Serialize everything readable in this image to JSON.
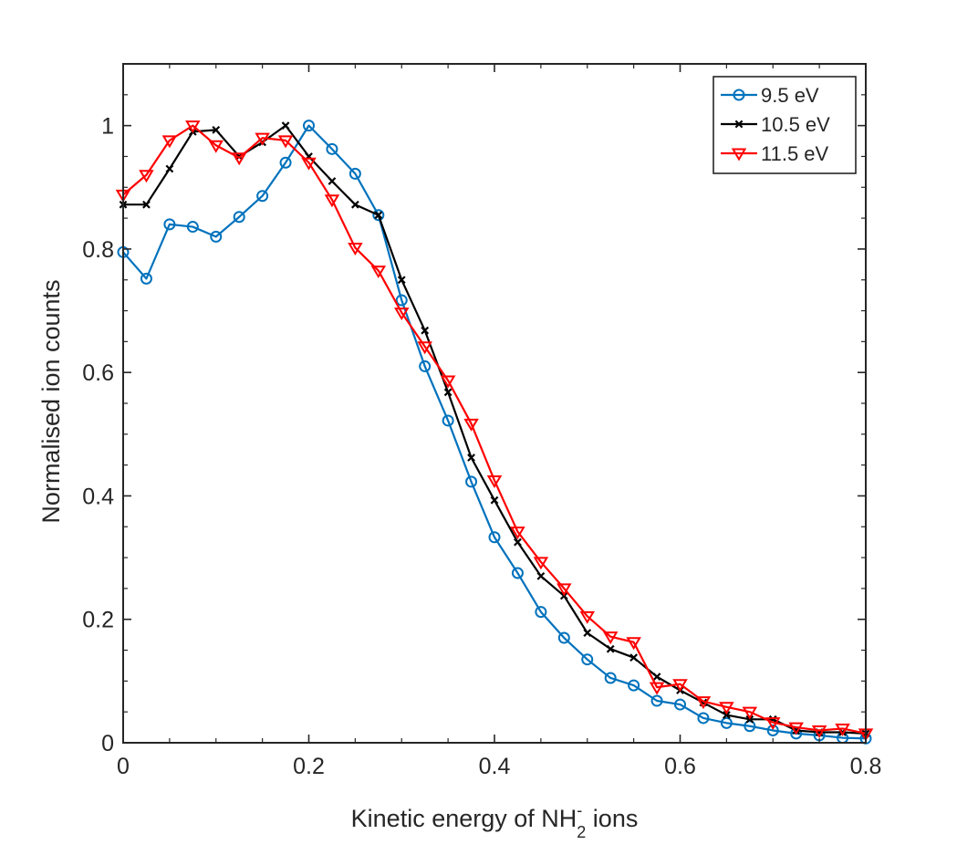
{
  "chart_data": {
    "type": "line",
    "title": "",
    "xlabel_prefix": "Kinetic energy of NH",
    "xlabel_sub": "2",
    "xlabel_sup": "-",
    "xlabel_suffix": " ions",
    "ylabel": "Normalised ion counts",
    "xlim": [
      0,
      0.8
    ],
    "ylim": [
      0,
      1.1
    ],
    "xticks": [
      0,
      0.2,
      0.4,
      0.6,
      0.8
    ],
    "xtick_labels": [
      "0",
      "0.2",
      "0.4",
      "0.6",
      "0.8"
    ],
    "yticks": [
      0,
      0.2,
      0.4,
      0.6,
      0.8,
      1
    ],
    "ytick_labels": [
      "0",
      "0.2",
      "0.4",
      "0.6",
      "0.8",
      "1"
    ],
    "grid": false,
    "legend_position": "top-right",
    "x": [
      0,
      0.025,
      0.05,
      0.075,
      0.1,
      0.125,
      0.15,
      0.175,
      0.2,
      0.225,
      0.25,
      0.275,
      0.3,
      0.325,
      0.35,
      0.375,
      0.4,
      0.425,
      0.45,
      0.475,
      0.5,
      0.525,
      0.55,
      0.575,
      0.6,
      0.625,
      0.65,
      0.675,
      0.7,
      0.725,
      0.75,
      0.775,
      0.8
    ],
    "series": [
      {
        "name": "9.5 eV",
        "color": "#0072BD",
        "marker": "circle",
        "values": [
          0.795,
          0.752,
          0.84,
          0.836,
          0.82,
          0.852,
          0.886,
          0.94,
          1.0,
          0.962,
          0.922,
          0.855,
          0.717,
          0.61,
          0.522,
          0.423,
          0.333,
          0.275,
          0.212,
          0.17,
          0.135,
          0.105,
          0.093,
          0.068,
          0.062,
          0.04,
          0.032,
          0.027,
          0.02,
          0.015,
          0.012,
          0.008,
          0.007
        ]
      },
      {
        "name": "10.5 eV",
        "color": "#000000",
        "marker": "x",
        "values": [
          0.872,
          0.872,
          0.93,
          0.99,
          0.993,
          0.95,
          0.973,
          1.0,
          0.95,
          0.91,
          0.872,
          0.855,
          0.75,
          0.668,
          0.568,
          0.462,
          0.393,
          0.325,
          0.27,
          0.238,
          0.178,
          0.152,
          0.138,
          0.107,
          0.085,
          0.065,
          0.045,
          0.038,
          0.038,
          0.02,
          0.017,
          0.017,
          0.015
        ]
      },
      {
        "name": "11.5 eV",
        "color": "#FF0000",
        "marker": "triangle-down",
        "values": [
          0.888,
          0.92,
          0.976,
          1.0,
          0.968,
          0.948,
          0.98,
          0.976,
          0.94,
          0.88,
          0.802,
          0.765,
          0.697,
          0.642,
          0.587,
          0.517,
          0.425,
          0.342,
          0.293,
          0.25,
          0.205,
          0.172,
          0.163,
          0.09,
          0.095,
          0.067,
          0.058,
          0.05,
          0.033,
          0.025,
          0.02,
          0.023,
          0.015
        ]
      }
    ]
  }
}
